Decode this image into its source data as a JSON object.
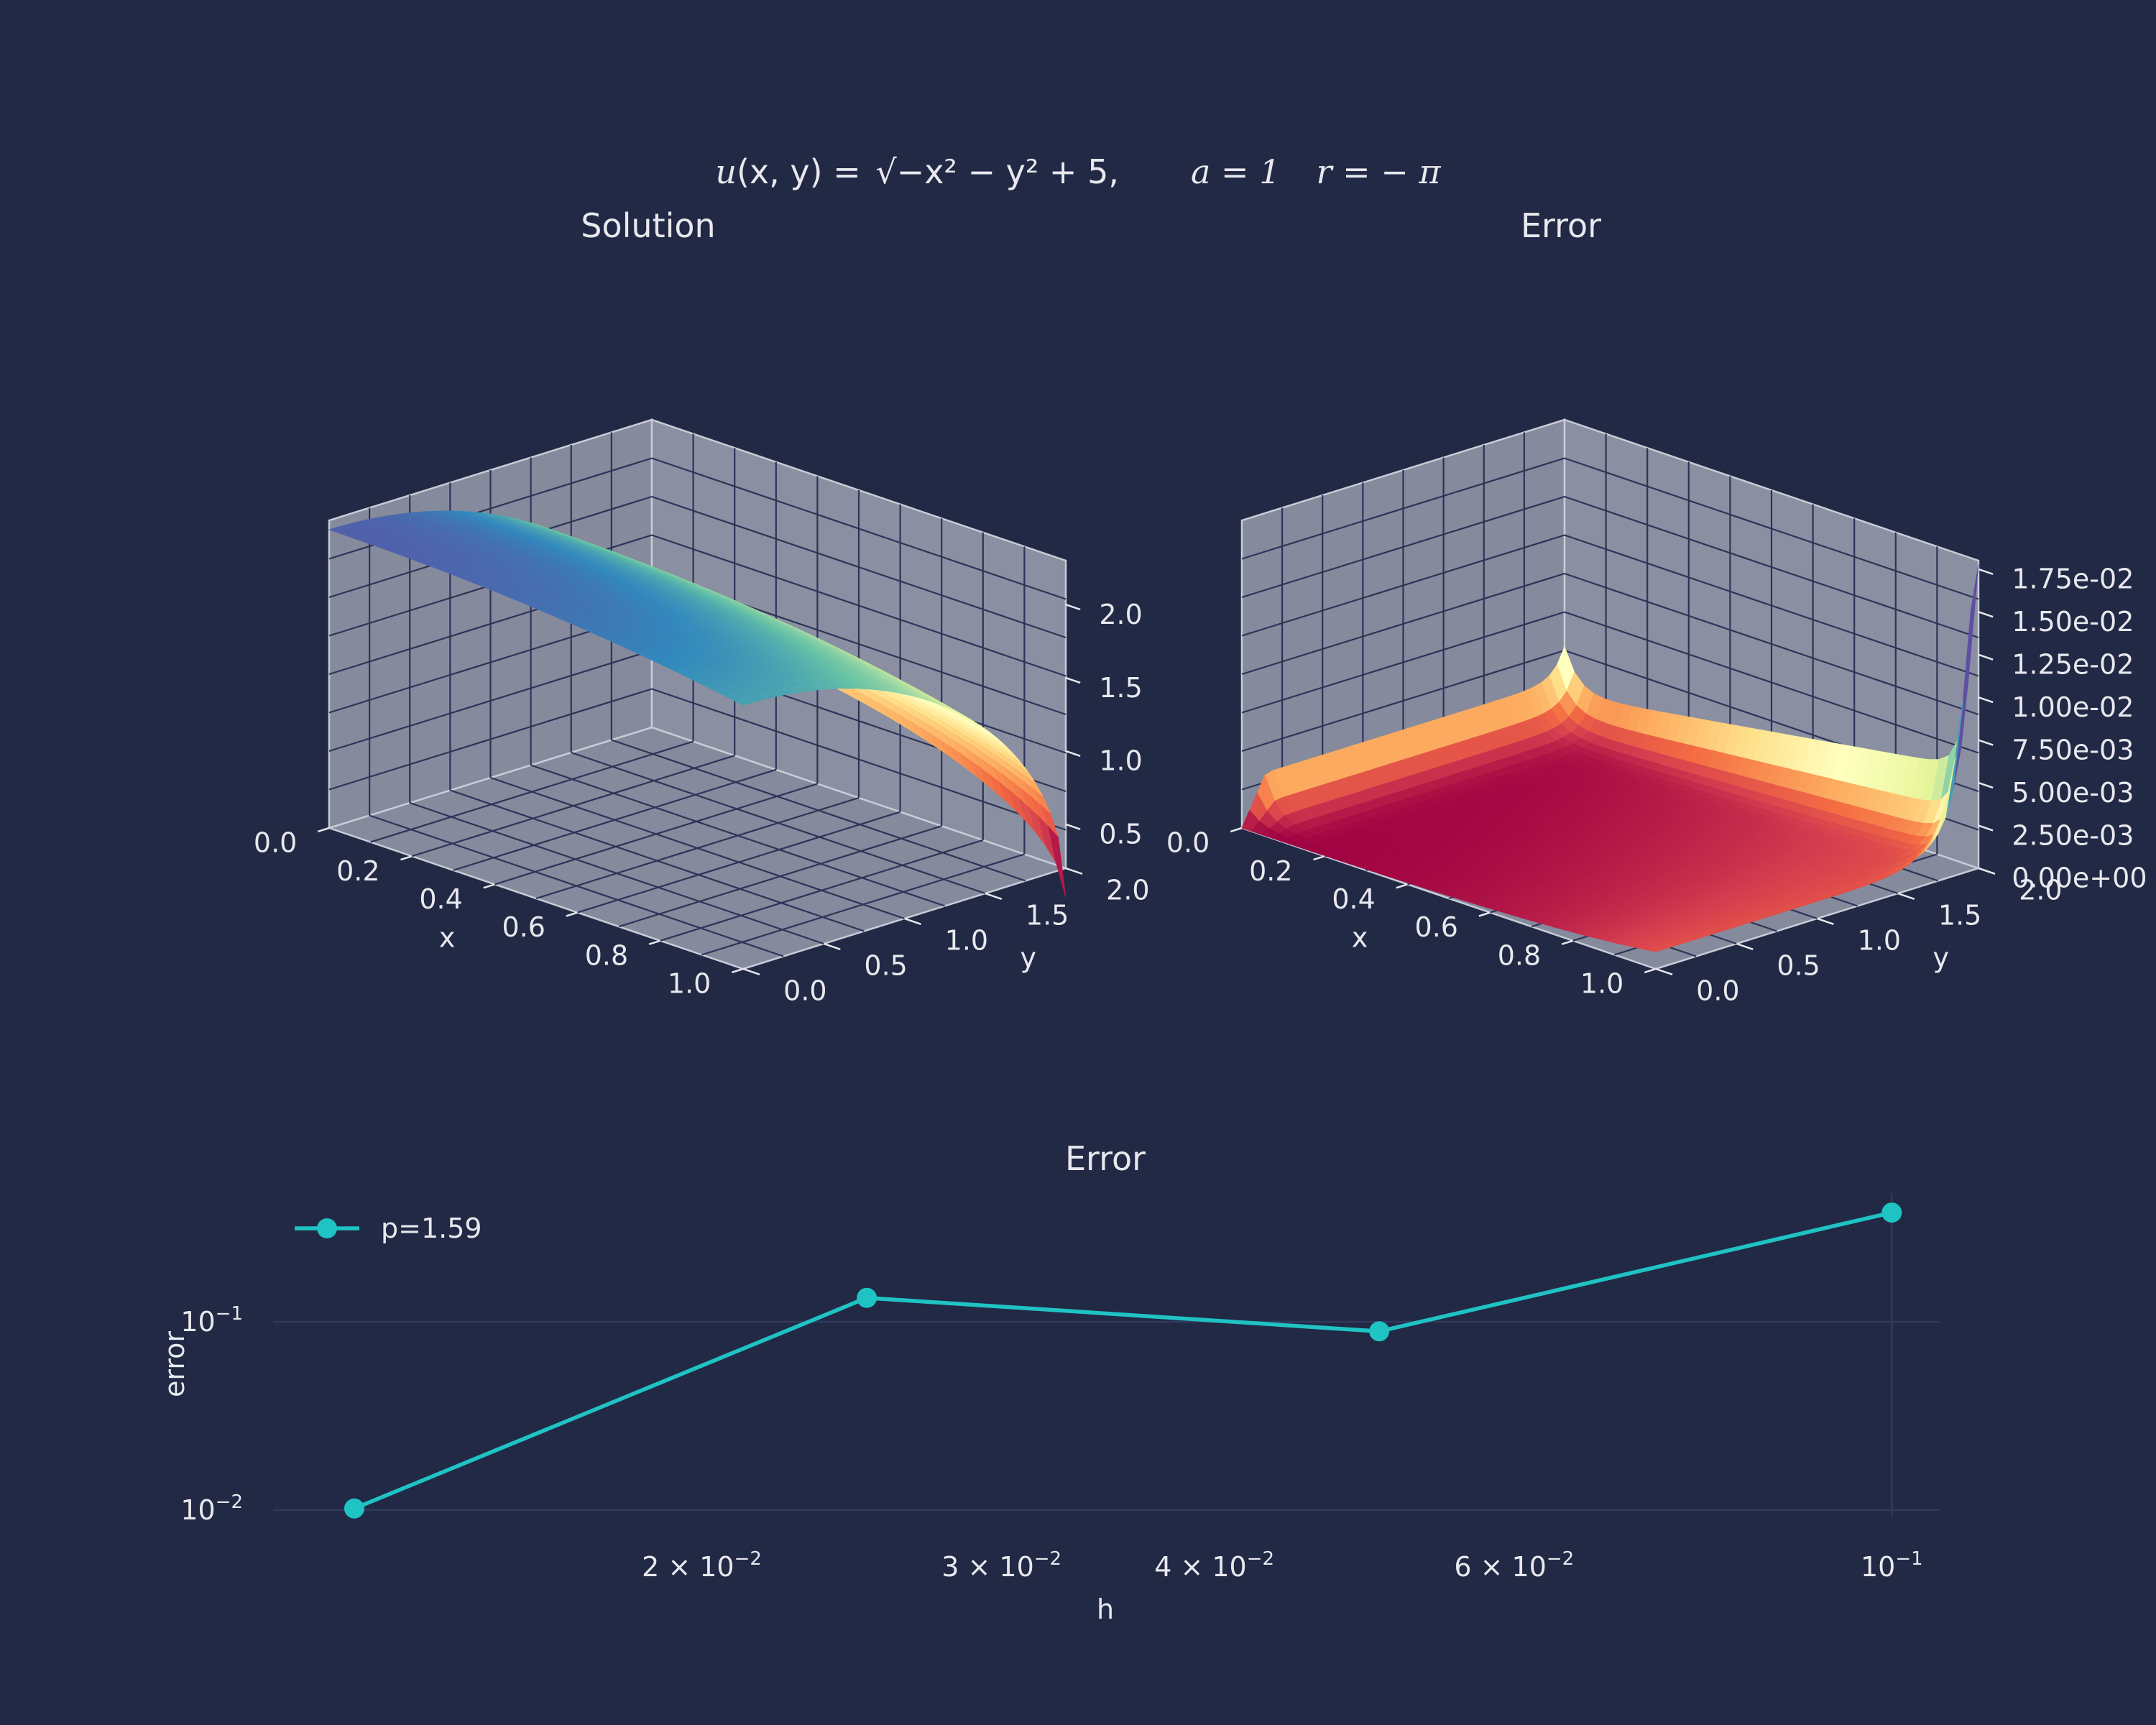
{
  "figure": {
    "equation": {
      "u": "u",
      "args": "(x, y) = ",
      "sqrt_body": "−x² − y² + 5",
      "comma": ",",
      "a": "a = 1",
      "r": "r = − π"
    }
  },
  "chart_data": [
    {
      "type": "surface3d",
      "title": "Solution",
      "xlabel": "x",
      "ylabel": "y",
      "zlabel": "",
      "xticks": [
        "0.0",
        "0.2",
        "0.4",
        "0.6",
        "0.8",
        "1.0"
      ],
      "yticks": [
        "0.0",
        "0.5",
        "1.0",
        "1.5",
        "2.0"
      ],
      "zticks": [
        "0.5",
        "1.0",
        "1.5",
        "2.0"
      ],
      "xlim": [
        0,
        1
      ],
      "ylim": [
        0,
        2
      ],
      "zlim": [
        0.2,
        2.3
      ],
      "function": "sqrt(-x^2 - y^2 + 5)",
      "colormap": "Spectral"
    },
    {
      "type": "surface3d",
      "title": "Error",
      "xlabel": "x",
      "ylabel": "y",
      "zlabel": "",
      "xticks": [
        "0.0",
        "0.2",
        "0.4",
        "0.6",
        "0.8",
        "1.0"
      ],
      "yticks": [
        "0.0",
        "0.5",
        "1.0",
        "1.5",
        "2.0"
      ],
      "zticks": [
        "0.00e+00",
        "2.50e-03",
        "5.00e-03",
        "7.50e-03",
        "1.00e-02",
        "1.25e-02",
        "1.50e-02",
        "1.75e-02"
      ],
      "xlim": [
        0,
        1
      ],
      "ylim": [
        0,
        2
      ],
      "zlim": [
        0,
        0.018
      ],
      "colormap": "Spectral"
    },
    {
      "type": "line",
      "title": "Error",
      "xlabel": "h",
      "ylabel": "error",
      "xscale": "log",
      "yscale": "log",
      "x": [
        0.0125,
        0.025,
        0.05,
        0.1
      ],
      "series": [
        {
          "name": "p=1.59",
          "values": [
            0.0102,
            0.134,
            0.089,
            0.38
          ],
          "color": "#1fc3c3"
        }
      ],
      "xticks": [
        {
          "m": "2 × 10",
          "e": "−2",
          "v": 0.02
        },
        {
          "m": "3 × 10",
          "e": "−2",
          "v": 0.03
        },
        {
          "m": "4 × 10",
          "e": "−2",
          "v": 0.04
        },
        {
          "m": "6 × 10",
          "e": "−2",
          "v": 0.06
        },
        {
          "m": "10",
          "e": "−1",
          "v": 0.1
        }
      ],
      "yticks": [
        {
          "m": "10",
          "e": "−1",
          "v": 0.1
        },
        {
          "m": "10",
          "e": "−2",
          "v": 0.01
        }
      ],
      "legend_position": "top-left",
      "grid": true
    }
  ]
}
